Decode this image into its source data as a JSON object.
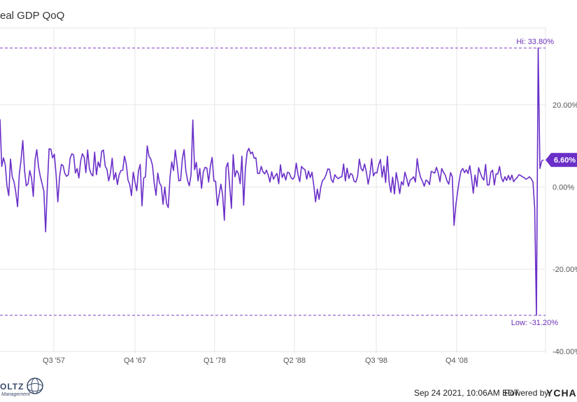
{
  "chart_data": {
    "type": "line",
    "title": "eal GDP QoQ",
    "x_tick_labels": [
      "Q3 '57",
      "Q4 '67",
      "Q1 '78",
      "Q2 '88",
      "Q3 '98",
      "Q4 '08"
    ],
    "y_tick_labels": [
      "20.00%",
      "0.00%",
      "-20.00%",
      "-40.00%"
    ],
    "y_ticks": [
      20,
      0,
      -20,
      -40
    ],
    "ylim": [
      -40,
      38
    ],
    "grid": true,
    "series": [
      {
        "values": [
          16.5,
          5.0,
          7.1,
          5.5,
          0.2,
          -2.1,
          6.8,
          2.5,
          1.2,
          -1.3,
          -4.8,
          3.1,
          6.6,
          11.3,
          4.0,
          0.3,
          0.8,
          4.0,
          2.2,
          -2.3,
          6.5,
          9.1,
          4.9,
          2.6,
          0.8,
          -1.0,
          -10.9,
          0.1,
          9.3,
          9.2,
          7.1,
          8.0,
          3.0,
          -3.6,
          2.5,
          5.5,
          5.2,
          3.3,
          2.6,
          3.0,
          7.0,
          8.1,
          7.8,
          3.4,
          4.5,
          2.2,
          6.3,
          8.1,
          7.3,
          3.5,
          9.0,
          4.5,
          3.2,
          2.7,
          8.5,
          3.0,
          6.1,
          4.8,
          8.7,
          9.0,
          5.1,
          4.3,
          1.5,
          3.4,
          7.0,
          1.8,
          3.5,
          0.6,
          3.0,
          4.0,
          4.1,
          7.5,
          5.6,
          1.7,
          0.6,
          -2.1,
          3.6,
          1.2,
          -0.9,
          4.0,
          5.5,
          -4.6,
          2.2,
          2.5,
          10.0,
          7.5,
          6.8,
          5.2,
          0.8,
          -2.0,
          3.4,
          1.0,
          0.2,
          -4.2,
          0.0,
          -4.0,
          -5.0,
          2.4,
          6.1,
          4.0,
          9.0,
          5.5,
          1.5,
          1.6,
          6.8,
          9.1,
          4.0,
          1.6,
          0.3,
          3.0,
          16.3,
          4.2,
          6.0,
          1.5,
          4.5,
          -0.3,
          3.7,
          4.8,
          4.6,
          1.2,
          5.1,
          7.2,
          1.5,
          1.4,
          -4.5,
          -1.9,
          0.7,
          -1.9,
          -8.1,
          4.8,
          5.9,
          0.5,
          -5.2,
          7.9,
          2.5,
          4.0,
          3.3,
          0.8,
          7.5,
          -4.4,
          4.6,
          8.5,
          9.4,
          8.1,
          8.5,
          7.0,
          7.1,
          3.3,
          3.3,
          5.0,
          3.7,
          3.2,
          4.1,
          2.9,
          1.2,
          3.7,
          1.9,
          2.7,
          3.3,
          0.8,
          5.4,
          2.3,
          3.3,
          1.7,
          3.6,
          3.4,
          2.3,
          1.9,
          2.5,
          5.8,
          3.0,
          1.3,
          5.0,
          4.5,
          4.2,
          1.9,
          3.9,
          2.3,
          3.6,
          0.3,
          -3.6,
          -0.5,
          -3.0,
          0.0,
          1.6,
          2.0,
          3.0,
          4.4,
          4.3,
          1.8,
          1.1,
          3.0,
          2.4,
          2.0,
          2.4,
          2.5,
          5.6,
          1.5,
          4.6,
          2.1,
          3.3,
          3.0,
          1.4,
          1.2,
          2.6,
          6.8,
          4.5,
          3.9,
          5.6,
          3.7,
          0.7,
          3.0,
          6.9,
          2.7,
          3.5,
          3.4,
          5.4,
          6.7,
          2.4,
          5.1,
          1.1,
          7.5,
          1.2,
          -1.3,
          2.4,
          -1.7,
          3.5,
          1.3,
          -1.6,
          1.3,
          0.5,
          3.6,
          2.1,
          0.2,
          1.7,
          2.0,
          2.5,
          1.2,
          6.9,
          3.9,
          2.3,
          1.4,
          0.2,
          1.7,
          1.4,
          0.6,
          3.8,
          3.6,
          3.4,
          4.8,
          3.4,
          1.3,
          4.5,
          3.6,
          2.9,
          1.5,
          0.7,
          3.5,
          2.5,
          -9.3,
          -4.5,
          -1.3,
          1.7,
          3.9,
          4.5,
          3.5,
          4.2,
          3.3,
          5.2,
          2.3,
          -1.5,
          2.9,
          0.1,
          4.7,
          3.4,
          2.3,
          1.7,
          5.5,
          0.5,
          0.5,
          3.6,
          4.1,
          0.5,
          3.2,
          3.2,
          5.0,
          2.3,
          1.3,
          2.5,
          1.6,
          2.8,
          1.7,
          2.9,
          1.3,
          1.9,
          2.3,
          3.0,
          2.8,
          2.5,
          2.3,
          1.9,
          2.1,
          2.5,
          2.0,
          1.3,
          -5.1,
          -31.2,
          33.8,
          4.5,
          6.3,
          6.6
        ]
      }
    ],
    "highlights": [
      {
        "label": "Hi: 33.80%",
        "value": 33.8
      },
      {
        "label": "Low: -31.20%",
        "value": -31.2
      }
    ],
    "last_value_label": "6.60%",
    "last_value": 6.6
  },
  "footer": {
    "timestamp": "Sep 24 2021, 10:06AM EDT.",
    "powered_by": "Powered by",
    "brand": "YCHA",
    "logo_text": "OLTZ",
    "logo_sub": "Management"
  },
  "colors": {
    "series": "#6a2fc8",
    "badge": "#6a2fc8"
  }
}
